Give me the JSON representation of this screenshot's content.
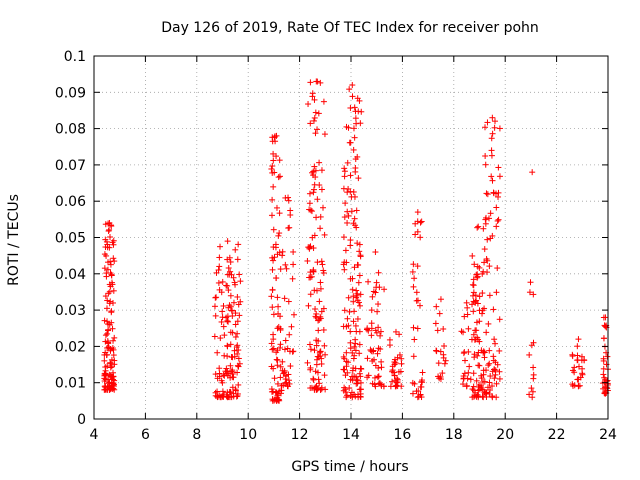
{
  "chart_data": {
    "type": "scatter",
    "title": "Day 126 of 2019, Rate Of TEC Index for receiver pohn",
    "xlabel": "GPS time / hours",
    "ylabel": "ROTI / TECUs",
    "xlim": [
      4,
      24
    ],
    "ylim": [
      0,
      0.1
    ],
    "x_ticks": [
      "4",
      "6",
      "8",
      "10",
      "12",
      "14",
      "16",
      "18",
      "20",
      "22",
      "24"
    ],
    "y_ticks": [
      "0",
      "0.01",
      "0.02",
      "0.03",
      "0.04",
      "0.05",
      "0.06",
      "0.07",
      "0.08",
      "0.09",
      "0.1"
    ],
    "grid": true,
    "marker": "+",
    "color": "#ff0000",
    "clusters": [
      {
        "x": [
          4.4,
          4.8
        ],
        "y": [
          0.008,
          0.054
        ],
        "n": 130
      },
      {
        "x": [
          8.7,
          9.7
        ],
        "y": [
          0.006,
          0.049
        ],
        "n": 140
      },
      {
        "x": [
          10.9,
          11.3
        ],
        "y": [
          0.005,
          0.078
        ],
        "n": 90
      },
      {
        "x": [
          11.3,
          11.8
        ],
        "y": [
          0.009,
          0.061
        ],
        "n": 40
      },
      {
        "x": [
          12.3,
          13.0
        ],
        "y": [
          0.008,
          0.093
        ],
        "n": 120
      },
      {
        "x": [
          13.7,
          14.4
        ],
        "y": [
          0.006,
          0.092
        ],
        "n": 150
      },
      {
        "x": [
          14.6,
          15.3
        ],
        "y": [
          0.009,
          0.046
        ],
        "n": 50
      },
      {
        "x": [
          15.5,
          16.0
        ],
        "y": [
          0.009,
          0.024
        ],
        "n": 30
      },
      {
        "x": [
          16.4,
          16.8
        ],
        "y": [
          0.006,
          0.057
        ],
        "n": 35
      },
      {
        "x": [
          17.3,
          17.7
        ],
        "y": [
          0.011,
          0.033
        ],
        "n": 18
      },
      {
        "x": [
          18.3,
          18.7
        ],
        "y": [
          0.009,
          0.032
        ],
        "n": 20
      },
      {
        "x": [
          18.7,
          19.2
        ],
        "y": [
          0.006,
          0.053
        ],
        "n": 80
      },
      {
        "x": [
          19.2,
          19.8
        ],
        "y": [
          0.006,
          0.083
        ],
        "n": 80
      },
      {
        "x": [
          20.9,
          21.2
        ],
        "y": [
          0.006,
          0.068
        ],
        "n": 12
      },
      {
        "x": [
          22.6,
          23.1
        ],
        "y": [
          0.009,
          0.022
        ],
        "n": 25
      },
      {
        "x": [
          23.8,
          24.0
        ],
        "y": [
          0.007,
          0.028
        ],
        "n": 35
      }
    ]
  }
}
